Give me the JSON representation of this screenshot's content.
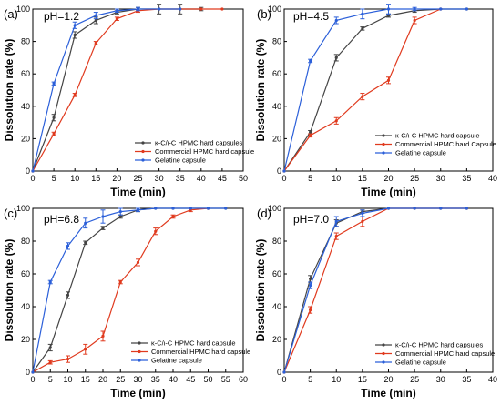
{
  "chart_data": [
    {
      "type": "line",
      "panel_label": "(a)",
      "title": "pH=1.2",
      "xlabel": "Time (min)",
      "ylabel": "Dissolution rate (%)",
      "xlim": [
        0,
        50
      ],
      "ylim": [
        0,
        100
      ],
      "xticks": [
        "0",
        "5",
        "10",
        "15",
        "20",
        "25",
        "30",
        "35",
        "40",
        "45",
        "50"
      ],
      "yticks": [
        "0",
        "20",
        "40",
        "60",
        "80",
        "100"
      ],
      "legend_position": "bottom-right",
      "series": [
        {
          "name": "κ-C/ι-C HPMC hard capsules",
          "color": "#444444",
          "x": [
            0,
            5,
            10,
            15,
            20,
            25,
            30,
            35,
            40
          ],
          "y": [
            0,
            33,
            84,
            93,
            98,
            100,
            100,
            100,
            100
          ],
          "err": [
            0,
            2,
            2,
            2,
            1,
            1,
            3,
            3,
            1
          ]
        },
        {
          "name": "Commercial HPMC hard capsule",
          "color": "#e03a1e",
          "x": [
            0,
            5,
            10,
            15,
            20,
            25,
            30,
            35,
            40,
            45
          ],
          "y": [
            0,
            23,
            47,
            79,
            94,
            99,
            100,
            100,
            100,
            100
          ],
          "err": [
            0,
            1,
            1,
            1,
            1,
            1,
            0,
            0,
            0,
            0
          ]
        },
        {
          "name": "Gelatine capsule",
          "color": "#2b5fd9",
          "x": [
            0,
            5,
            10,
            15,
            20,
            25,
            30,
            35
          ],
          "y": [
            0,
            54,
            90,
            96,
            99,
            100,
            100,
            100
          ],
          "err": [
            0,
            1,
            2,
            2,
            1,
            1,
            0,
            0
          ]
        }
      ]
    },
    {
      "type": "line",
      "panel_label": "(b)",
      "title": "pH=4.5",
      "xlabel": "Time (min)",
      "ylabel": "Dissolution rate (%)",
      "xlim": [
        0,
        40
      ],
      "ylim": [
        0,
        100
      ],
      "xticks": [
        "0",
        "5",
        "10",
        "15",
        "20",
        "25",
        "30",
        "35",
        "40"
      ],
      "yticks": [
        "0",
        "20",
        "40",
        "60",
        "80",
        "100"
      ],
      "legend_position": "bottom-right",
      "series": [
        {
          "name": "κ-C/ι-C HPMC hard capsule",
          "color": "#444444",
          "x": [
            0,
            5,
            10,
            15,
            20,
            25,
            30,
            35
          ],
          "y": [
            0,
            24,
            70,
            88,
            96,
            99,
            100,
            100
          ],
          "err": [
            0,
            1,
            2,
            1,
            1,
            1,
            0,
            0
          ]
        },
        {
          "name": "Commercial HPMC hard Capsule",
          "color": "#e03a1e",
          "x": [
            0,
            5,
            10,
            15,
            20,
            25,
            30
          ],
          "y": [
            0,
            22,
            31,
            46,
            56,
            93,
            100
          ],
          "err": [
            0,
            1,
            2,
            2,
            2,
            2,
            0
          ]
        },
        {
          "name": "Gelatine capsule",
          "color": "#2b5fd9",
          "x": [
            0,
            5,
            10,
            15,
            20,
            25,
            30,
            35
          ],
          "y": [
            0,
            68,
            93,
            97,
            100,
            100,
            100,
            100
          ],
          "err": [
            0,
            1,
            2,
            3,
            3,
            1,
            0,
            0
          ]
        }
      ]
    },
    {
      "type": "line",
      "panel_label": "(c)",
      "title": "pH=6.8",
      "xlabel": "Time (min)",
      "ylabel": "Dissolution rate (%)",
      "xlim": [
        0,
        60
      ],
      "ylim": [
        0,
        100
      ],
      "xticks": [
        "0",
        "5",
        "10",
        "15",
        "20",
        "25",
        "30",
        "35",
        "40",
        "45",
        "50",
        "55",
        "60"
      ],
      "yticks": [
        "0",
        "20",
        "40",
        "60",
        "80",
        "100"
      ],
      "legend_position": "bottom-right",
      "series": [
        {
          "name": "κ-C/ι-C HPMC hard capsule",
          "color": "#444444",
          "x": [
            0,
            5,
            10,
            15,
            20,
            25,
            30,
            35,
            40,
            45,
            50,
            55
          ],
          "y": [
            0,
            15,
            47,
            79,
            88,
            95,
            99,
            100,
            100,
            100,
            100,
            100
          ],
          "err": [
            0,
            2,
            2,
            1,
            1,
            1,
            1,
            0,
            0,
            0,
            0,
            0
          ]
        },
        {
          "name": "Commercial HPMC hard capsule",
          "color": "#e03a1e",
          "x": [
            0,
            5,
            10,
            15,
            20,
            25,
            30,
            35,
            40,
            45,
            50
          ],
          "y": [
            0,
            6,
            8,
            14,
            22,
            55,
            67,
            86,
            95,
            99,
            100
          ],
          "err": [
            0,
            1,
            2,
            3,
            3,
            1,
            2,
            2,
            1,
            1,
            0
          ]
        },
        {
          "name": "Gelatine capsule",
          "color": "#2b5fd9",
          "x": [
            0,
            5,
            10,
            15,
            20,
            25,
            30,
            35,
            40,
            45,
            50,
            55
          ],
          "y": [
            0,
            55,
            77,
            91,
            95,
            98,
            99,
            100,
            100,
            100,
            100,
            100
          ],
          "err": [
            0,
            1,
            2,
            3,
            4,
            2,
            1,
            0,
            0,
            0,
            0,
            0
          ]
        }
      ]
    },
    {
      "type": "line",
      "panel_label": "(d)",
      "title": "pH=7.0",
      "xlabel": "Time (min)",
      "ylabel": "Dissolution rate (%)",
      "xlim": [
        0,
        40
      ],
      "ylim": [
        0,
        100
      ],
      "xticks": [
        "0",
        "5",
        "10",
        "15",
        "20",
        "25",
        "30",
        "35",
        "40"
      ],
      "yticks": [
        "0",
        "20",
        "40",
        "60",
        "80",
        "100"
      ],
      "legend_position": "bottom-right",
      "series": [
        {
          "name": "κ-C/ι-C HPMC hard capsules",
          "color": "#444444",
          "x": [
            0,
            5,
            10,
            15,
            20,
            25,
            30,
            35
          ],
          "y": [
            0,
            57,
            91,
            98,
            100,
            100,
            100,
            100
          ],
          "err": [
            0,
            2,
            2,
            1,
            0,
            0,
            0,
            0
          ]
        },
        {
          "name": "Commercial HPMC hard capsule",
          "color": "#e03a1e",
          "x": [
            0,
            5,
            10,
            15,
            20,
            25,
            30,
            35
          ],
          "y": [
            0,
            38,
            83,
            92,
            100,
            100,
            100,
            100
          ],
          "err": [
            0,
            2,
            2,
            3,
            0,
            0,
            0,
            0
          ]
        },
        {
          "name": "Gelatine capsule",
          "color": "#2b5fd9",
          "x": [
            0,
            5,
            10,
            15,
            20,
            25,
            30,
            35
          ],
          "y": [
            0,
            53,
            92,
            97,
            100,
            100,
            100,
            100
          ],
          "err": [
            0,
            2,
            3,
            2,
            0,
            0,
            0,
            0
          ]
        }
      ]
    }
  ]
}
